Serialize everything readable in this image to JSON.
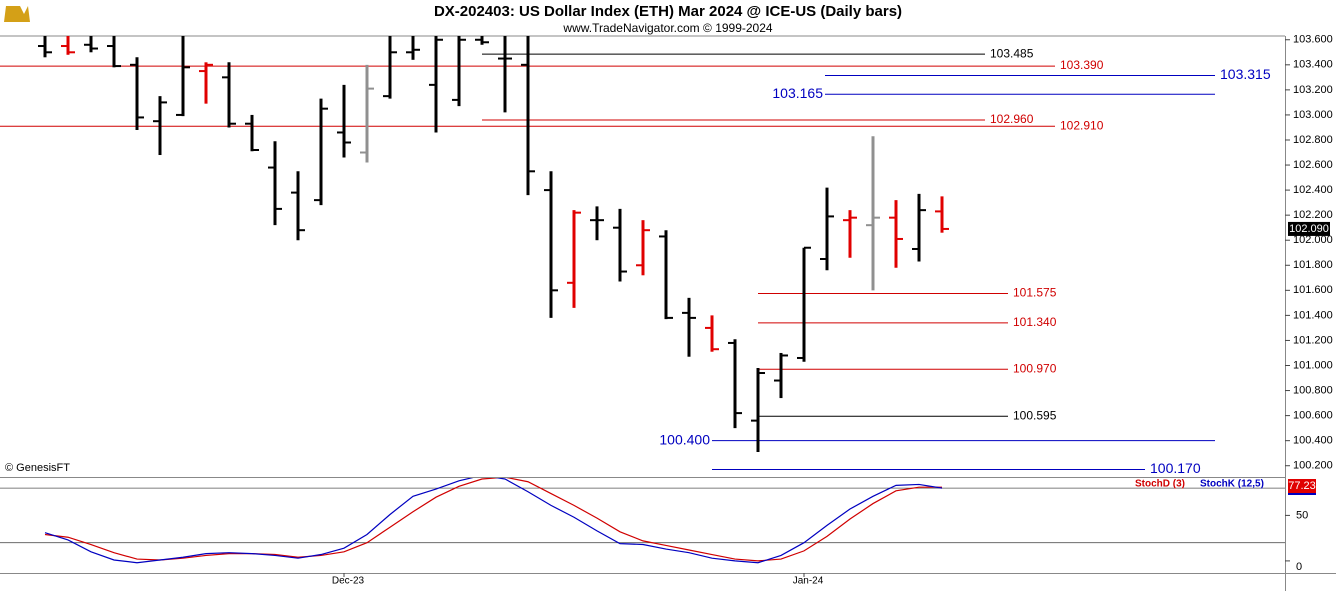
{
  "title": "DX-202403:  US Dollar Index (ETH) Mar 2024 @ ICE-US  (Daily bars)",
  "subtitle": "www.TradeNavigator.com © 1999-2024",
  "credit": "© GenesisFT",
  "chart_data": [
    {
      "type": "ohlc",
      "categories": [
        null,
        null,
        null,
        null,
        null,
        null,
        null,
        null,
        null,
        null,
        null,
        null,
        null,
        "Dec-23",
        null,
        null,
        null,
        null,
        null,
        null,
        null,
        null,
        null,
        null,
        null,
        null,
        null,
        null,
        null,
        null,
        null,
        null,
        null,
        "Jan-24",
        null,
        null,
        null,
        null,
        null,
        null
      ],
      "open": [
        103.55,
        103.55,
        103.56,
        103.55,
        103.4,
        102.95,
        103.0,
        103.35,
        103.3,
        102.93,
        102.58,
        102.38,
        102.32,
        102.86,
        102.7,
        103.15,
        103.5,
        103.24,
        103.12,
        103.6,
        103.45,
        103.4,
        102.4,
        101.66,
        102.16,
        102.1,
        101.8,
        102.03,
        101.42,
        101.3,
        101.18,
        100.56,
        100.88,
        101.06,
        101.85,
        102.16,
        102.12,
        102.18,
        101.93,
        102.23
      ],
      "high": [
        103.65,
        103.65,
        103.65,
        103.65,
        103.46,
        103.15,
        103.65,
        103.42,
        103.42,
        103.0,
        102.79,
        102.55,
        103.13,
        103.24,
        103.4,
        103.65,
        103.65,
        103.65,
        103.65,
        103.65,
        103.65,
        103.65,
        102.55,
        102.24,
        102.27,
        102.25,
        102.16,
        102.08,
        101.54,
        101.4,
        101.21,
        100.98,
        101.1,
        101.94,
        102.42,
        102.24,
        102.83,
        102.32,
        102.37,
        102.35
      ],
      "low": [
        103.46,
        103.48,
        103.5,
        103.38,
        102.88,
        102.68,
        102.99,
        103.09,
        102.9,
        102.71,
        102.12,
        102.0,
        102.28,
        102.66,
        102.62,
        103.13,
        103.44,
        102.86,
        103.07,
        103.56,
        103.02,
        102.36,
        101.38,
        101.46,
        102.0,
        101.67,
        101.72,
        101.37,
        101.07,
        101.11,
        100.5,
        100.31,
        100.74,
        101.03,
        101.76,
        101.86,
        101.6,
        101.78,
        101.83,
        102.06
      ],
      "close": [
        103.5,
        103.5,
        103.53,
        103.39,
        102.98,
        103.1,
        103.38,
        103.4,
        102.93,
        102.72,
        102.25,
        102.08,
        103.05,
        102.78,
        103.21,
        103.5,
        103.52,
        103.6,
        103.6,
        103.58,
        103.45,
        102.55,
        101.6,
        102.22,
        102.16,
        101.75,
        102.08,
        101.38,
        101.38,
        101.13,
        100.62,
        100.94,
        101.08,
        101.94,
        102.19,
        102.18,
        102.18,
        102.01,
        102.24,
        102.09
      ],
      "bar_colors": [
        "#000",
        "#e00000",
        "#000",
        "#000",
        "#000",
        "#000",
        "#000",
        "#e00000",
        "#000",
        "#000",
        "#000",
        "#000",
        "#000",
        "#000",
        "#909090",
        "#000",
        "#000",
        "#000",
        "#000",
        "#000",
        "#000",
        "#000",
        "#000",
        "#e00000",
        "#000",
        "#000",
        "#e00000",
        "#000",
        "#000",
        "#e00000",
        "#000",
        "#000",
        "#000",
        "#000",
        "#000",
        "#e00000",
        "#909090",
        "#e00000",
        "#000",
        "#e00000"
      ],
      "ylim": [
        100.11,
        103.63
      ],
      "yticks": [
        {
          "value": 103.6,
          "label": "103.600"
        },
        {
          "value": 103.4,
          "label": "103.400"
        },
        {
          "value": 103.2,
          "label": "103.200"
        },
        {
          "value": 103.0,
          "label": "103.000"
        },
        {
          "value": 102.8,
          "label": "102.800"
        },
        {
          "value": 102.6,
          "label": "102.600"
        },
        {
          "value": 102.4,
          "label": "102.400"
        },
        {
          "value": 102.2,
          "label": "102.200"
        },
        {
          "value": 102.0,
          "label": "102.000"
        },
        {
          "value": 101.8,
          "label": "101.800"
        },
        {
          "value": 101.6,
          "label": "101.600"
        },
        {
          "value": 101.4,
          "label": "101.400"
        },
        {
          "value": 101.2,
          "label": "101.200"
        },
        {
          "value": 101.0,
          "label": "101.000"
        },
        {
          "value": 100.8,
          "label": "100.800"
        },
        {
          "value": 100.6,
          "label": "100.600"
        },
        {
          "value": 100.4,
          "label": "100.400"
        },
        {
          "value": 100.2,
          "label": "100.200"
        }
      ],
      "last_price": {
        "value": 102.09,
        "label": "102.090"
      },
      "levels": [
        {
          "value": 103.485,
          "label": "103.485",
          "color": "#000000"
        },
        {
          "value": 103.39,
          "label": "103.390",
          "color": "#d00000"
        },
        {
          "value": 103.315,
          "label": "103.315",
          "color": "#0000c0"
        },
        {
          "value": 103.165,
          "label": "103.165",
          "color": "#0000c0"
        },
        {
          "value": 102.96,
          "label": "102.960",
          "color": "#d00000"
        },
        {
          "value": 102.91,
          "label": "102.910",
          "color": "#d00000"
        },
        {
          "value": 101.575,
          "label": "101.575",
          "color": "#d00000"
        },
        {
          "value": 101.34,
          "label": "101.340",
          "color": "#d00000"
        },
        {
          "value": 100.97,
          "label": "100.970",
          "color": "#d00000"
        },
        {
          "value": 100.595,
          "label": "100.595",
          "color": "#000000"
        },
        {
          "value": 100.4,
          "label": "100.400",
          "color": "#0000c0"
        },
        {
          "value": 100.17,
          "label": "100.170",
          "color": "#0000c0"
        }
      ]
    },
    {
      "type": "line",
      "series": [
        {
          "name": "StochD (3)",
          "color": "#d00000",
          "values": [
            29,
            26,
            18,
            9,
            2,
            1,
            3,
            6,
            8,
            8,
            7,
            4,
            6,
            10,
            20,
            37,
            54,
            70,
            82,
            90,
            92,
            87,
            74,
            61,
            47,
            32,
            22,
            17,
            12,
            7,
            2,
            0,
            2,
            11,
            27,
            46,
            63,
            77,
            81,
            81
          ]
        },
        {
          "name": "StochK (12,5)",
          "color": "#0000c0",
          "values": [
            31,
            23,
            10,
            1,
            -2,
            1,
            4,
            8,
            9,
            8,
            6,
            3,
            7,
            14,
            29,
            51,
            71,
            79,
            88,
            94,
            90,
            76,
            61,
            48,
            33,
            19,
            18,
            13,
            9,
            3,
            0,
            -2,
            6,
            20,
            39,
            57,
            71,
            83,
            84,
            80
          ]
        }
      ],
      "ylim": [
        -13.3,
        91.1
      ],
      "yticks": [
        0,
        50
      ],
      "levels": [
        80,
        20
      ],
      "last_value": 77.23
    }
  ]
}
